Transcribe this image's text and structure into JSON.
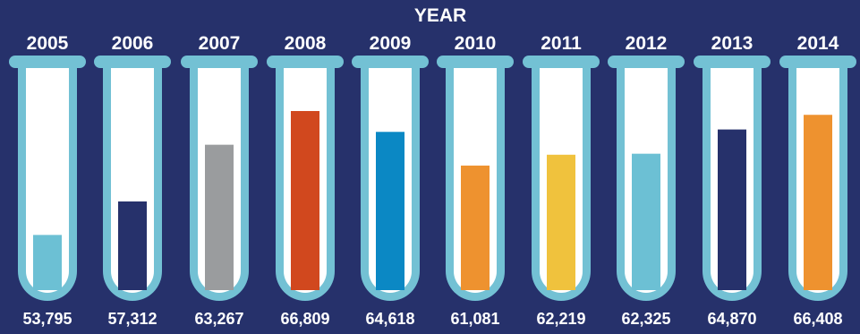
{
  "chart_data": {
    "type": "bar",
    "title": "YEAR",
    "categories": [
      "2005",
      "2006",
      "2007",
      "2008",
      "2009",
      "2010",
      "2011",
      "2012",
      "2013",
      "2014"
    ],
    "values": [
      53795,
      57312,
      63267,
      66809,
      64618,
      61081,
      62219,
      62325,
      64870,
      66408
    ],
    "value_labels": [
      "53,795",
      "57,312",
      "63,267",
      "66,809",
      "64,618",
      "61,081",
      "62,219",
      "62,325",
      "64,870",
      "66,408"
    ],
    "colors": [
      "#6cc0d4",
      "#26316b",
      "#9a9c9e",
      "#d1481e",
      "#0b88c4",
      "#ee922f",
      "#f0c23d",
      "#6cc0d4",
      "#26316b",
      "#ee922f"
    ],
    "ylim": [
      48000,
      68500
    ],
    "grid": false,
    "legend": "none"
  }
}
